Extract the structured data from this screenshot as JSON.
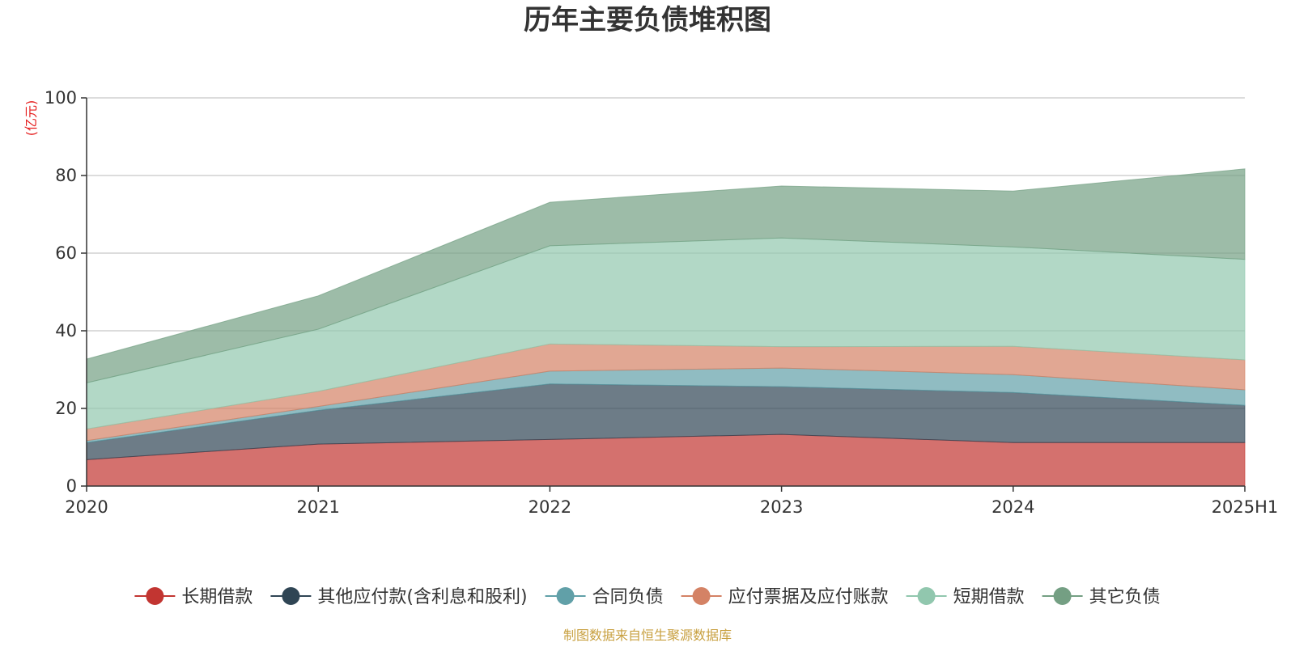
{
  "chart_data": {
    "type": "area",
    "stacked": true,
    "title": "历年主要负债堆积图",
    "unit_label": "(亿元)",
    "categories": [
      "2020",
      "2021",
      "2022",
      "2023",
      "2024",
      "2025H1"
    ],
    "ylim": [
      0,
      100
    ],
    "yticks": [
      0,
      20,
      40,
      60,
      80,
      100
    ],
    "grid": true,
    "legend_position": "bottom",
    "series": [
      {
        "name": "长期借款",
        "color": "#c23531",
        "values": [
          6.8,
          10.8,
          12.0,
          13.3,
          11.2,
          11.2
        ]
      },
      {
        "name": "其他应付款(含利息和股利)",
        "color": "#2f4554",
        "values": [
          4.4,
          8.7,
          14.3,
          12.3,
          12.9,
          9.6
        ]
      },
      {
        "name": "合同负债",
        "color": "#61a0a8",
        "values": [
          0.5,
          1.0,
          3.3,
          4.8,
          4.6,
          4.0
        ]
      },
      {
        "name": "应付票据及应付账款",
        "color": "#d48265",
        "values": [
          3.0,
          3.9,
          7.0,
          5.5,
          7.3,
          7.7
        ]
      },
      {
        "name": "短期借款",
        "color": "#91c7ae",
        "values": [
          11.9,
          16.0,
          25.3,
          28.0,
          25.6,
          25.9
        ]
      },
      {
        "name": "其它负债",
        "color": "#749f83",
        "values": [
          6.1,
          8.6,
          11.2,
          13.4,
          14.4,
          23.3
        ]
      }
    ],
    "source_note": "制图数据来自恒生聚源数据库",
    "source_color": "#c8a040",
    "unit_color": "#e52020"
  }
}
